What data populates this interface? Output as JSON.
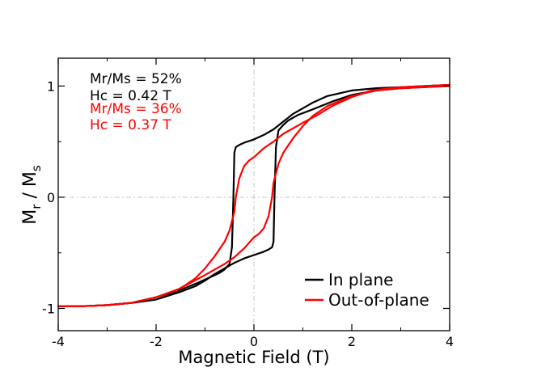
{
  "chart_data": {
    "type": "line",
    "title": "",
    "xlabel": "Magnetic Field (T)",
    "ylabel_main": "M",
    "ylabel_sub1": "r",
    "ylabel_mid": " / M",
    "ylabel_sub2": "s",
    "xlim": [
      -4,
      4
    ],
    "ylim": [
      -1.2,
      1.25
    ],
    "xticks": [
      -4,
      -2,
      0,
      2,
      4
    ],
    "xtick_labels": [
      "-4",
      "-2",
      "0",
      "2",
      "4"
    ],
    "yticks": [
      -1,
      0,
      1
    ],
    "ytick_labels": [
      "-1",
      "0",
      "1"
    ],
    "grid": "dashed zero lines",
    "legend_position": "bottom-right",
    "annotations": [
      {
        "text": "Mr/Ms = 52%",
        "color": "#000000"
      },
      {
        "text": "Hc = 0.42 T",
        "color": "#000000"
      },
      {
        "text": "Mr/Ms = 36%",
        "color": "#ff0000"
      },
      {
        "text": "Hc = 0.37 T",
        "color": "#ff0000"
      }
    ],
    "series": [
      {
        "name": "In plane",
        "color": "#000000",
        "upper": {
          "x": [
            -4,
            -3.5,
            -3,
            -2.5,
            -2,
            -1.6,
            -1.2,
            -0.9,
            -0.7,
            -0.6,
            -0.5,
            -0.45,
            -0.42,
            -0.4,
            -0.37,
            -0.3,
            -0.2,
            0,
            0.2,
            0.4,
            0.6,
            0.8,
            1.0,
            1.2,
            1.5,
            2.0,
            2.5,
            3.0,
            3.5,
            4
          ],
          "y": [
            -0.98,
            -0.98,
            -0.97,
            -0.95,
            -0.9,
            -0.85,
            -0.78,
            -0.72,
            -0.68,
            -0.65,
            -0.6,
            -0.45,
            0.0,
            0.4,
            0.45,
            0.47,
            0.49,
            0.52,
            0.56,
            0.61,
            0.68,
            0.75,
            0.8,
            0.85,
            0.91,
            0.96,
            0.98,
            0.99,
            1.0,
            1.01
          ]
        },
        "lower": {
          "x": [
            -4,
            -3.5,
            -3,
            -2.5,
            -2,
            -1.5,
            -1.2,
            -1.0,
            -0.8,
            -0.6,
            -0.4,
            -0.2,
            0,
            0.2,
            0.3,
            0.37,
            0.4,
            0.42,
            0.45,
            0.5,
            0.6,
            0.7,
            0.9,
            1.2,
            1.6,
            2.0,
            2.5,
            3.0,
            3.5,
            4
          ],
          "y": [
            -0.98,
            -0.98,
            -0.97,
            -0.95,
            -0.92,
            -0.85,
            -0.8,
            -0.75,
            -0.69,
            -0.64,
            -0.59,
            -0.55,
            -0.52,
            -0.49,
            -0.47,
            -0.45,
            -0.4,
            0.0,
            0.45,
            0.6,
            0.65,
            0.69,
            0.74,
            0.79,
            0.86,
            0.92,
            0.96,
            0.98,
            0.99,
            1.01
          ]
        }
      },
      {
        "name": "Out-of-plane",
        "color": "#ff0000",
        "upper": {
          "x": [
            -4,
            -3.5,
            -3,
            -2.5,
            -2,
            -1.5,
            -1.2,
            -1.0,
            -0.8,
            -0.6,
            -0.5,
            -0.4,
            -0.37,
            -0.3,
            -0.2,
            -0.1,
            0,
            0.2,
            0.4,
            0.6,
            0.8,
            1.0,
            1.3,
            1.6,
            2.0,
            2.4,
            3.0,
            3.5,
            4
          ],
          "y": [
            -0.98,
            -0.98,
            -0.97,
            -0.95,
            -0.9,
            -0.82,
            -0.73,
            -0.64,
            -0.53,
            -0.4,
            -0.3,
            -0.13,
            0.0,
            0.17,
            0.28,
            0.33,
            0.36,
            0.44,
            0.5,
            0.57,
            0.62,
            0.67,
            0.74,
            0.82,
            0.9,
            0.96,
            0.99,
            1.0,
            1.01
          ]
        },
        "lower": {
          "x": [
            -4,
            -3.5,
            -3,
            -2.5,
            -2,
            -1.6,
            -1.3,
            -1.0,
            -0.8,
            -0.6,
            -0.4,
            -0.2,
            0,
            0.1,
            0.2,
            0.3,
            0.37,
            0.4,
            0.5,
            0.6,
            0.8,
            1.0,
            1.2,
            1.5,
            2.0,
            2.5,
            3.0,
            3.5,
            4
          ],
          "y": [
            -0.98,
            -0.98,
            -0.97,
            -0.95,
            -0.9,
            -0.84,
            -0.77,
            -0.7,
            -0.65,
            -0.6,
            -0.54,
            -0.46,
            -0.36,
            -0.33,
            -0.28,
            -0.17,
            0.0,
            0.13,
            0.3,
            0.4,
            0.53,
            0.64,
            0.73,
            0.82,
            0.91,
            0.96,
            0.98,
            0.99,
            1.0
          ]
        }
      }
    ]
  }
}
